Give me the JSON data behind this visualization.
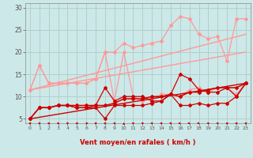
{
  "background_color": "#cde8e8",
  "grid_color": "#b0d0cc",
  "xlabel": "Vent moyen/en rafales ( km/h )",
  "xlim": [
    -0.5,
    23.5
  ],
  "ylim": [
    4,
    31
  ],
  "yticks": [
    5,
    10,
    15,
    20,
    25,
    30
  ],
  "xticks": [
    0,
    1,
    2,
    3,
    4,
    5,
    6,
    7,
    8,
    9,
    10,
    11,
    12,
    13,
    14,
    15,
    16,
    17,
    18,
    19,
    20,
    21,
    22,
    23
  ],
  "series": [
    {
      "x": [
        0,
        1,
        2,
        3,
        4,
        5,
        6,
        7,
        8,
        9,
        10,
        11,
        12,
        13,
        14,
        15,
        16,
        17,
        18,
        19,
        20,
        21,
        22,
        23
      ],
      "y": [
        11.5,
        17,
        13,
        13,
        13,
        13,
        13,
        14,
        20,
        20,
        22,
        21,
        21.5,
        22,
        22.5,
        26,
        28,
        27.5,
        24,
        23,
        23.5,
        18,
        27.5,
        27.5
      ],
      "color": "#ff9999",
      "lw": 0.9,
      "marker": "D",
      "ms": 2.0
    },
    {
      "x": [
        0,
        1,
        2,
        3,
        4,
        5,
        6,
        7,
        8,
        9,
        10,
        11,
        12,
        13,
        14,
        15,
        16,
        17,
        18,
        19,
        20,
        21,
        22,
        23
      ],
      "y": [
        11.5,
        17,
        13,
        13,
        13,
        13,
        13,
        14,
        20,
        9,
        20,
        10,
        9,
        9.5,
        10.5,
        10.5,
        10,
        11.5,
        12,
        11,
        12,
        12,
        10.5,
        13
      ],
      "color": "#ff9999",
      "lw": 0.9,
      "marker": "D",
      "ms": 2.0
    },
    {
      "x": [
        0,
        23
      ],
      "y": [
        11.5,
        24
      ],
      "color": "#ff9999",
      "lw": 1.0,
      "marker": null,
      "ms": 0
    },
    {
      "x": [
        0,
        23
      ],
      "y": [
        11.5,
        20
      ],
      "color": "#ff9999",
      "lw": 1.0,
      "marker": null,
      "ms": 0
    },
    {
      "x": [
        0,
        1,
        2,
        3,
        4,
        5,
        6,
        7,
        8,
        9,
        10,
        11,
        12,
        13,
        14,
        15,
        16,
        17,
        18,
        19,
        20,
        21,
        22,
        23
      ],
      "y": [
        5,
        7.5,
        7.5,
        8,
        8,
        7.5,
        7.5,
        7.5,
        5,
        8,
        8,
        8,
        8,
        8.5,
        9,
        10.5,
        8,
        8,
        8.5,
        8,
        8.5,
        8.5,
        10,
        13
      ],
      "color": "#cc0000",
      "lw": 0.9,
      "marker": "D",
      "ms": 2.0
    },
    {
      "x": [
        0,
        1,
        2,
        3,
        4,
        5,
        6,
        7,
        8,
        9,
        10,
        11,
        12,
        13,
        14,
        15,
        16,
        17,
        18,
        19,
        20,
        21,
        22,
        23
      ],
      "y": [
        5,
        7.5,
        7.5,
        8,
        8,
        7.5,
        7.5,
        8,
        12,
        9,
        10,
        10,
        10,
        9,
        9,
        10.5,
        15,
        14,
        11.5,
        11,
        11,
        12,
        10,
        13
      ],
      "color": "#cc0000",
      "lw": 0.9,
      "marker": "D",
      "ms": 2.0
    },
    {
      "x": [
        0,
        1,
        2,
        3,
        4,
        5,
        6,
        7,
        8,
        9,
        10,
        11,
        12,
        13,
        14,
        15,
        16,
        17,
        18,
        19,
        20,
        21,
        22,
        23
      ],
      "y": [
        5,
        7.5,
        7.5,
        8,
        8,
        8,
        8,
        8,
        8,
        8.5,
        9.5,
        9.5,
        9.5,
        10,
        10,
        10.5,
        10,
        11,
        11,
        11.5,
        12,
        12,
        12,
        13
      ],
      "color": "#cc0000",
      "lw": 1.1,
      "marker": "D",
      "ms": 2.0
    },
    {
      "x": [
        0,
        23
      ],
      "y": [
        5,
        13
      ],
      "color": "#cc0000",
      "lw": 1.0,
      "marker": null,
      "ms": 0
    }
  ],
  "wind_angles": [
    45,
    45,
    45,
    45,
    45,
    45,
    90,
    45,
    45,
    45,
    0,
    315,
    315,
    315,
    315,
    315,
    270,
    270,
    270,
    315,
    315,
    45,
    45,
    45
  ]
}
